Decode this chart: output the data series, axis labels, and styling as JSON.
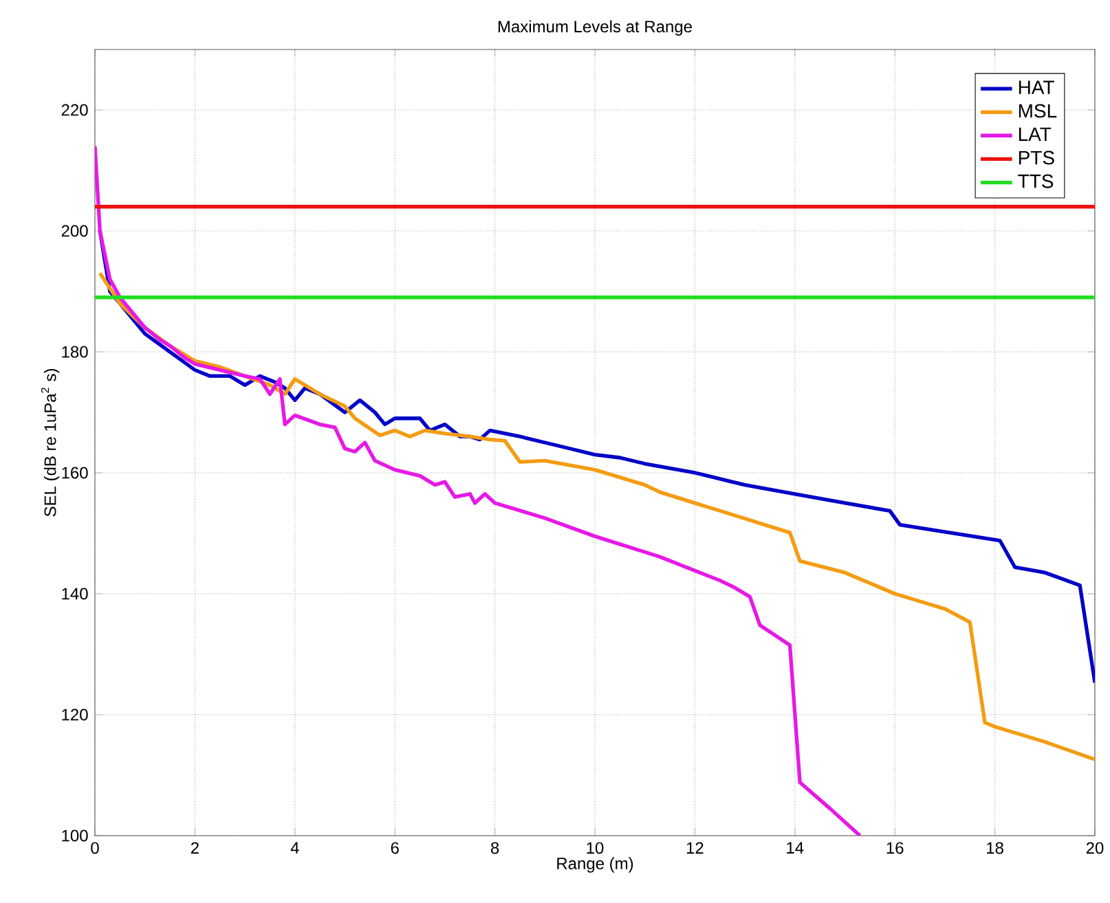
{
  "chart_data": {
    "type": "line",
    "title": "Maximum Levels at Range",
    "xlabel": "Range (m)",
    "ylabel": "SEL (dB re 1uPa$^{2}$ s)",
    "xlim": [
      0,
      20
    ],
    "xticks": [
      0,
      2,
      4,
      6,
      8,
      10,
      12,
      14,
      16,
      18,
      20
    ],
    "ylim": [
      100,
      230
    ],
    "yticks": [
      100,
      120,
      140,
      160,
      180,
      200,
      220
    ],
    "grid": true,
    "legend": "top right",
    "marker": "none",
    "line_style": "solid",
    "series": [
      {
        "name": "HAT",
        "color": "#0000c8",
        "x": [
          0.1,
          0.3,
          0.5,
          1,
          1.5,
          2,
          2.3,
          2.7,
          3,
          3.3,
          3.6,
          3.8,
          4,
          4.2,
          4.5,
          5,
          5.3,
          5.6,
          5.8,
          6,
          6.5,
          6.7,
          7,
          7.3,
          7.5,
          7.7,
          7.9,
          8.5,
          9,
          9.5,
          10,
          10.5,
          11,
          12,
          12.7,
          13,
          14,
          15,
          15.9,
          16.1,
          18.1,
          18.4,
          19,
          19.7,
          20
        ],
        "values": [
          200,
          190,
          188,
          183,
          180,
          177,
          176,
          176,
          174.5,
          176,
          175,
          174,
          172,
          174,
          173,
          170,
          172,
          170,
          168,
          169,
          169,
          167,
          168,
          166,
          166,
          165.5,
          167,
          166,
          165,
          164,
          163,
          162.5,
          161.5,
          160,
          158.6,
          158,
          156.5,
          155,
          153.7,
          151.4,
          148.8,
          144.4,
          143.5,
          141.4,
          125.3
        ]
      },
      {
        "name": "MSL",
        "color": "#f39c12",
        "x": [
          0.1,
          0.5,
          1,
          1.5,
          2,
          2.5,
          3,
          3.5,
          3.8,
          4,
          4.5,
          5,
          5.2,
          5.7,
          6,
          6.3,
          6.6,
          7,
          7.5,
          7.9,
          8.2,
          8.5,
          9,
          10,
          11,
          11.3,
          12,
          12.7,
          13.9,
          14.1,
          15,
          16,
          17,
          17.5,
          17.8,
          18,
          19,
          20
        ],
        "values": [
          193,
          188,
          184,
          181,
          178.5,
          177.5,
          176,
          174.5,
          173,
          175.5,
          173,
          171,
          169,
          166.2,
          167,
          166,
          167,
          166.5,
          166,
          165.5,
          165.3,
          161.8,
          162,
          160.5,
          158,
          156.8,
          155,
          153.2,
          150.1,
          145.4,
          143.5,
          140,
          137.5,
          135.3,
          118.7,
          118,
          115.5,
          112.6
        ]
      },
      {
        "name": "LAT",
        "color": "#e619e6",
        "x": [
          0,
          0.1,
          0.3,
          0.5,
          0.8,
          1,
          1.3,
          1.5,
          1.8,
          2,
          2.5,
          3,
          3.3,
          3.5,
          3.7,
          3.8,
          4,
          4.5,
          4.8,
          5,
          5.2,
          5.4,
          5.6,
          6,
          6.5,
          6.8,
          7,
          7.2,
          7.5,
          7.6,
          7.8,
          8,
          9,
          10,
          11.3,
          12.5,
          12.8,
          13.1,
          13.3,
          13.9,
          14.1,
          14.7,
          15.3
        ],
        "values": [
          214,
          200,
          192,
          189,
          186,
          184,
          182,
          181,
          179,
          178,
          177,
          176,
          175.5,
          173,
          175.5,
          168,
          169.5,
          168,
          167.5,
          164,
          163.5,
          165,
          162,
          160.5,
          159.5,
          158,
          158.5,
          156,
          156.5,
          155,
          156.5,
          155,
          152.5,
          149.5,
          146.1,
          142.2,
          141,
          139.5,
          134.8,
          131.5,
          108.8,
          104.5,
          100
        ]
      },
      {
        "name": "PTS",
        "color": "#f01010",
        "x": [
          0,
          20
        ],
        "values": [
          204,
          204
        ]
      },
      {
        "name": "TTS",
        "color": "#22dd22",
        "x": [
          0,
          20
        ],
        "values": [
          189,
          189
        ]
      }
    ]
  }
}
